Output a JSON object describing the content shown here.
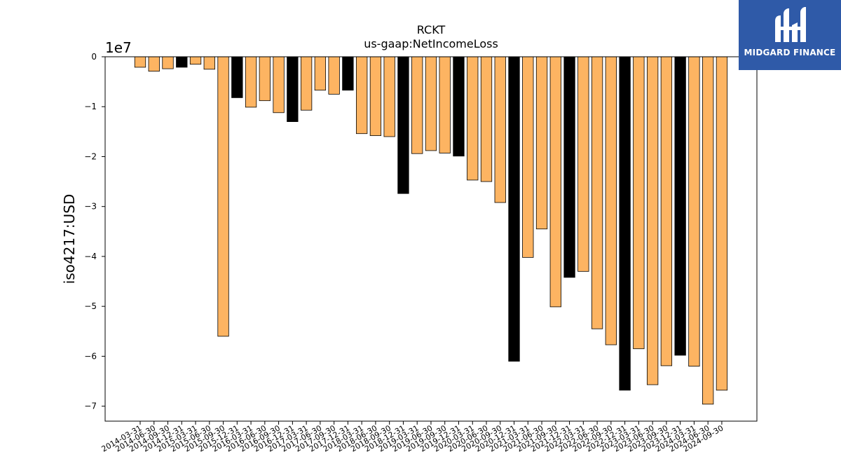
{
  "chart_data": {
    "type": "bar",
    "title": "RCKT",
    "subtitle": "us-gaap:NetIncomeLoss",
    "ylabel": "iso4217:USD",
    "y_scale_label": "1e7",
    "ylim": [
      -73000000,
      0
    ],
    "yticks": [
      0,
      -10000000,
      -20000000,
      -30000000,
      -40000000,
      -50000000,
      -60000000,
      -70000000
    ],
    "ytick_labels": [
      "0",
      "−1",
      "−2",
      "−3",
      "−4",
      "−5",
      "−6",
      "−7"
    ],
    "grid": false,
    "colors": {
      "quarterly": "#fdb462",
      "annual": "#000000"
    },
    "categories": [
      "2014-03-31",
      "2014-06-30",
      "2014-09-30",
      "2014-12-31",
      "2015-03-31",
      "2015-06-30",
      "2015-09-30",
      "2015-12-31",
      "2016-03-31",
      "2016-06-30",
      "2016-09-30",
      "2016-12-31",
      "2017-03-31",
      "2017-06-30",
      "2017-09-30",
      "2017-12-31",
      "2018-03-31",
      "2018-06-30",
      "2018-09-30",
      "2018-12-31",
      "2019-03-31",
      "2019-06-30",
      "2019-09-30",
      "2019-12-31",
      "2020-03-31",
      "2020-06-30",
      "2020-09-30",
      "2020-12-31",
      "2021-03-31",
      "2021-06-30",
      "2021-09-30",
      "2021-12-31",
      "2022-03-31",
      "2022-06-30",
      "2022-09-30",
      "2022-12-31",
      "2023-03-31",
      "2023-06-30",
      "2023-09-30",
      "2023-12-31",
      "2024-03-31",
      "2024-06-30",
      "2024-09-30"
    ],
    "values": [
      -2100000,
      -2900000,
      -2400000,
      -2100000,
      -1500000,
      -2500000,
      -56000000,
      -8200000,
      -10100000,
      -8800000,
      -11200000,
      -13000000,
      -10700000,
      -6700000,
      -7500000,
      -6700000,
      -15400000,
      -15800000,
      -16000000,
      -27400000,
      -19400000,
      -18800000,
      -19300000,
      -19900000,
      -24700000,
      -25000000,
      -29200000,
      -61000000,
      -40200000,
      -34500000,
      -50100000,
      -44200000,
      -43000000,
      -54500000,
      -57700000,
      -66800000,
      -58500000,
      -65700000,
      -61900000,
      -59800000,
      -62000000,
      -69600000,
      -66800000
    ],
    "is_annual": [
      false,
      false,
      false,
      true,
      false,
      false,
      false,
      true,
      false,
      false,
      false,
      true,
      false,
      false,
      false,
      true,
      false,
      false,
      false,
      true,
      false,
      false,
      false,
      true,
      false,
      false,
      false,
      true,
      false,
      false,
      false,
      true,
      false,
      false,
      false,
      true,
      false,
      false,
      false,
      true,
      false,
      false,
      false
    ]
  },
  "logo": {
    "text": "MIDGARD FINANCE"
  }
}
